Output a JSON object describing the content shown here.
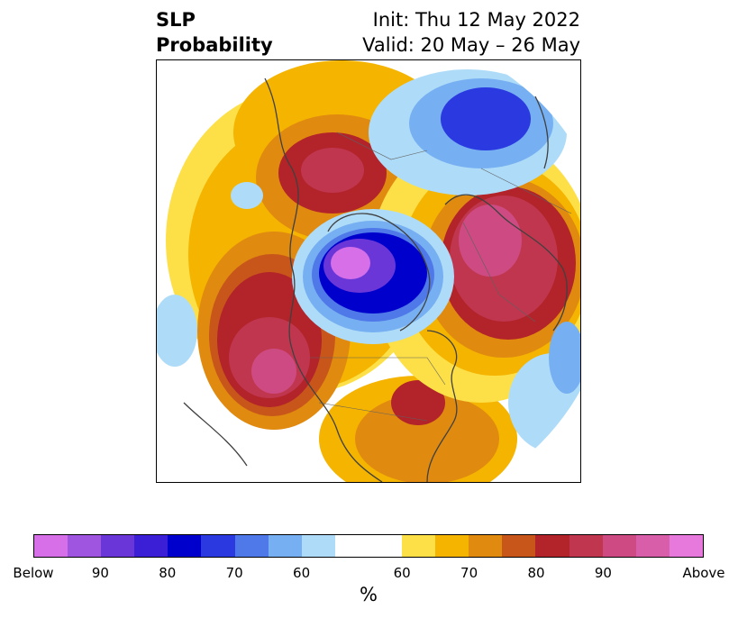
{
  "header": {
    "title_line1": "SLP",
    "title_line2": "Probability",
    "init_text": "Init: Thu 12 May 2022",
    "valid_text": "Valid: 20 May – 26 May"
  },
  "map": {
    "projection": "north-polar-stereographic",
    "field": "sea level pressure tercile probability",
    "features": [
      "coastlines",
      "country-borders",
      "state-borders"
    ]
  },
  "colorbar": {
    "colors": [
      "#d66fe8",
      "#9f55e0",
      "#6b36d8",
      "#3a1fd6",
      "#0000cc",
      "#2a3ae0",
      "#4f78e8",
      "#77b0f2",
      "#aedcf8",
      "#ffffff",
      "#ffffff",
      "#fde047",
      "#f4b400",
      "#e08a10",
      "#c8561a",
      "#b2232a",
      "#c0364f",
      "#cd4b82",
      "#d95eaa",
      "#e778dc"
    ],
    "labels": [
      "Below",
      "90",
      "80",
      "70",
      "60",
      "60",
      "70",
      "80",
      "90",
      "Above"
    ],
    "unit": "%"
  }
}
